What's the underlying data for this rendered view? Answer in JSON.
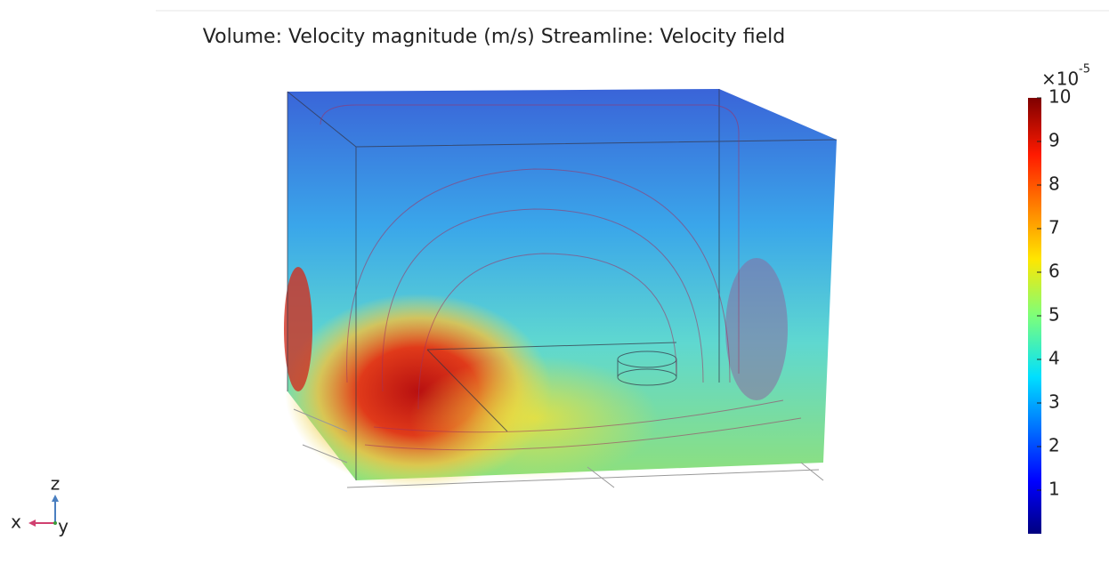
{
  "title": "Volume: Velocity magnitude (m/s)  Streamline: Velocity field",
  "colorbar": {
    "multiplier": "×10",
    "exponent": "-5",
    "min": 0,
    "max": 10,
    "ticks": [
      1,
      2,
      3,
      4,
      5,
      6,
      7,
      8,
      9,
      10
    ]
  },
  "axes": {
    "x": "x",
    "y": "y",
    "z": "z"
  }
}
